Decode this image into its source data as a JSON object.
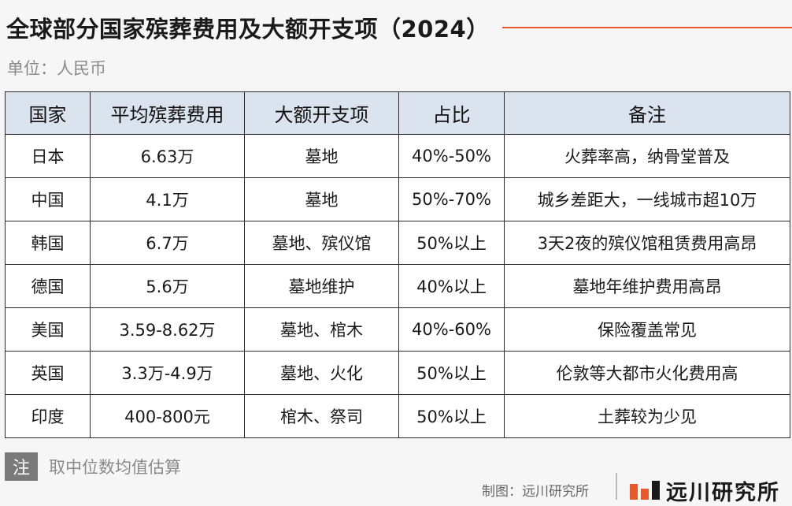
{
  "title": "全球部分国家殡葬费用及大额开支项（2024）",
  "unit": "单位：人民币",
  "table": {
    "headers": [
      "国家",
      "平均殡葬费用",
      "大额开支项",
      "占比",
      "备注"
    ],
    "rows": [
      [
        "日本",
        "6.63万",
        "墓地",
        "40%-50%",
        "火葬率高，纳骨堂普及"
      ],
      [
        "中国",
        "4.1万",
        "墓地",
        "50%-70%",
        "城乡差距大，一线城市超10万"
      ],
      [
        "韩国",
        "6.7万",
        "墓地、殡仪馆",
        "50%以上",
        "3天2夜的殡仪馆租赁费用高昂"
      ],
      [
        "德国",
        "5.6万",
        "墓地维护",
        "40%以上",
        "墓地年维护费用高昂"
      ],
      [
        "美国",
        "3.59-8.62万",
        "墓地、棺木",
        "40%-60%",
        "保险覆盖常见"
      ],
      [
        "英国",
        "3.3万-4.9万",
        "墓地、火化",
        "50%以上",
        "伦敦等大都市火化费用高"
      ],
      [
        "印度",
        "400-800元",
        "棺木、祭司",
        "50%以上",
        "土葬较为少见"
      ]
    ]
  },
  "note": {
    "badge": "注",
    "text": "取中位数均值估算"
  },
  "credit": "制图：远川研究所",
  "logo": {
    "text": "远川研究所",
    "icon": "yuanchuan-logo-icon"
  },
  "colors": {
    "accent": "#e8582a",
    "header_bg": "#dbe4ee",
    "note_badge": "#7a7a7a"
  }
}
